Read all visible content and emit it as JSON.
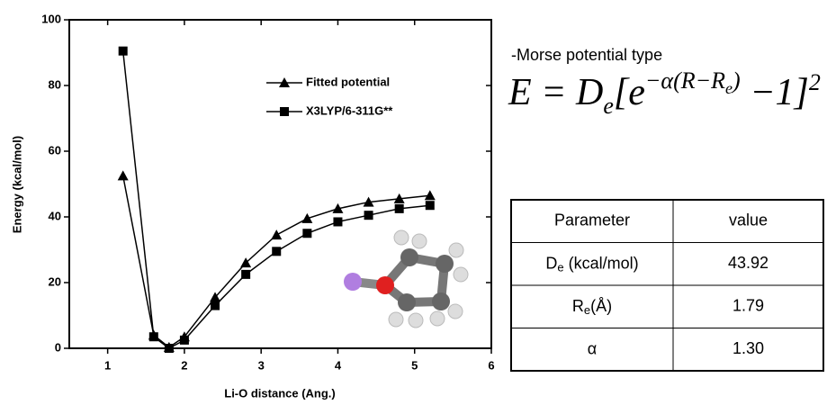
{
  "chart_data": {
    "type": "line",
    "xlabel": "Li-O distance (Ang.)",
    "ylabel": "Energy (kcal/mol)",
    "x": [
      1.2,
      1.6,
      1.8,
      2.0,
      2.4,
      2.8,
      3.2,
      3.6,
      4.0,
      4.4,
      4.8,
      5.2
    ],
    "series": [
      {
        "name": "Fitted potential",
        "color": "#000000",
        "marker": "triangle",
        "values": [
          52.5,
          4,
          0.3,
          3.5,
          15.5,
          26,
          34.5,
          39.5,
          42.5,
          44.5,
          45.5,
          46.5
        ]
      },
      {
        "name": "X3LYP/6-311G**",
        "color": "#000000",
        "marker": "square",
        "values": [
          90.5,
          3.5,
          0,
          2.5,
          13,
          22.5,
          29.5,
          35,
          38.5,
          40.5,
          42.5,
          43.5
        ]
      }
    ],
    "xlim": [
      0.5,
      6
    ],
    "xticks": [
      1,
      2,
      3,
      4,
      5,
      6
    ],
    "ylim": [
      0,
      100
    ],
    "yticks": [
      0,
      20,
      40,
      60,
      80,
      100
    ],
    "legend": "upper-right"
  },
  "annotation": {
    "text": "-Morse potential type",
    "formula": {
      "lhs": "E = D",
      "sub1": "e",
      "open": "[e",
      "exp": "−α(R−R",
      "expsub": "e",
      "expclose": ")",
      "minus": " −1]",
      "power": "2"
    }
  },
  "table": {
    "header": [
      "Parameter",
      "value"
    ],
    "rows": [
      [
        {
          "main": "D",
          "sub": "e",
          "rest": " (kcal/mol)"
        },
        "43.92"
      ],
      [
        {
          "main": "R",
          "sub": "e",
          "rest": "(Å)"
        },
        "1.79"
      ],
      [
        {
          "main": "α"
        },
        "1.30"
      ]
    ]
  }
}
